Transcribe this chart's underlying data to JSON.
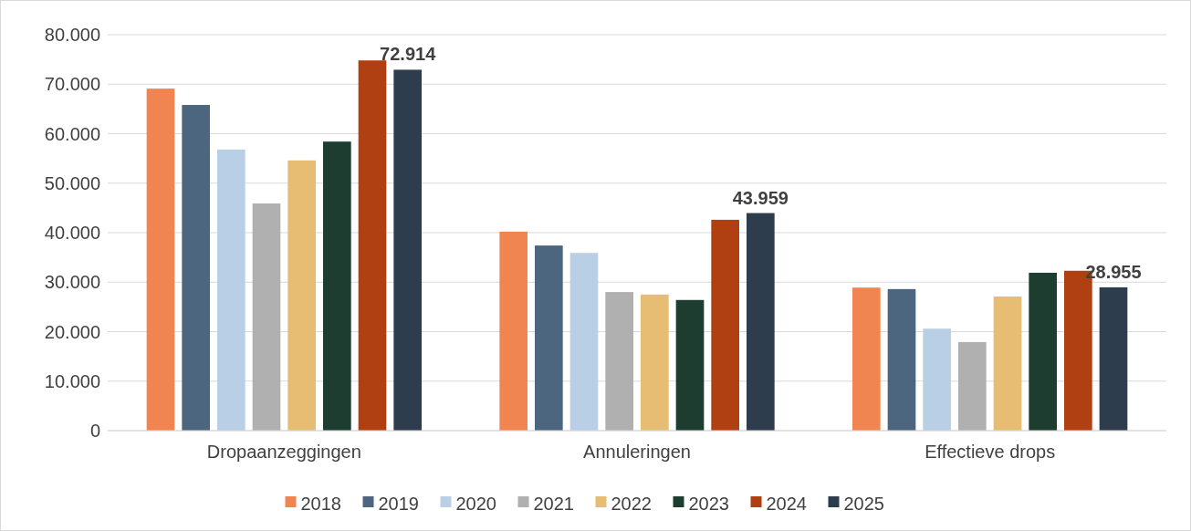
{
  "chart_data": {
    "type": "bar",
    "categories": [
      "Dropaanzeggingen",
      "Annuleringen",
      "Effectieve drops"
    ],
    "series": [
      {
        "name": "2018",
        "color": "#f08552",
        "values": [
          69100,
          40200,
          28900
        ]
      },
      {
        "name": "2019",
        "color": "#4d6680",
        "values": [
          65800,
          37400,
          28600
        ]
      },
      {
        "name": "2020",
        "color": "#b8cfe6",
        "values": [
          56800,
          35900,
          20600
        ]
      },
      {
        "name": "2021",
        "color": "#b0b0b0",
        "values": [
          45900,
          28000,
          17900
        ]
      },
      {
        "name": "2022",
        "color": "#e6bd73",
        "values": [
          54600,
          27500,
          27100
        ]
      },
      {
        "name": "2023",
        "color": "#1c3d30",
        "values": [
          58400,
          26400,
          31900
        ]
      },
      {
        "name": "2024",
        "color": "#b03f11",
        "values": [
          74800,
          42600,
          32300
        ]
      },
      {
        "name": "2025",
        "color": "#2e3d4d",
        "values": [
          72914,
          43959,
          28955
        ],
        "value_labels": [
          "72.914",
          "43.959",
          "28.955"
        ]
      }
    ],
    "ylim": [
      0,
      80000
    ],
    "yticks": [
      {
        "value": 0,
        "label": "0"
      },
      {
        "value": 10000,
        "label": "10.000"
      },
      {
        "value": 20000,
        "label": "20.000"
      },
      {
        "value": 30000,
        "label": "30.000"
      },
      {
        "value": 40000,
        "label": "40.000"
      },
      {
        "value": 50000,
        "label": "50.000"
      },
      {
        "value": 60000,
        "label": "60.000"
      },
      {
        "value": 70000,
        "label": "70.000"
      },
      {
        "value": 80000,
        "label": "80.000"
      }
    ],
    "grid": "y",
    "legend": "bottom"
  }
}
